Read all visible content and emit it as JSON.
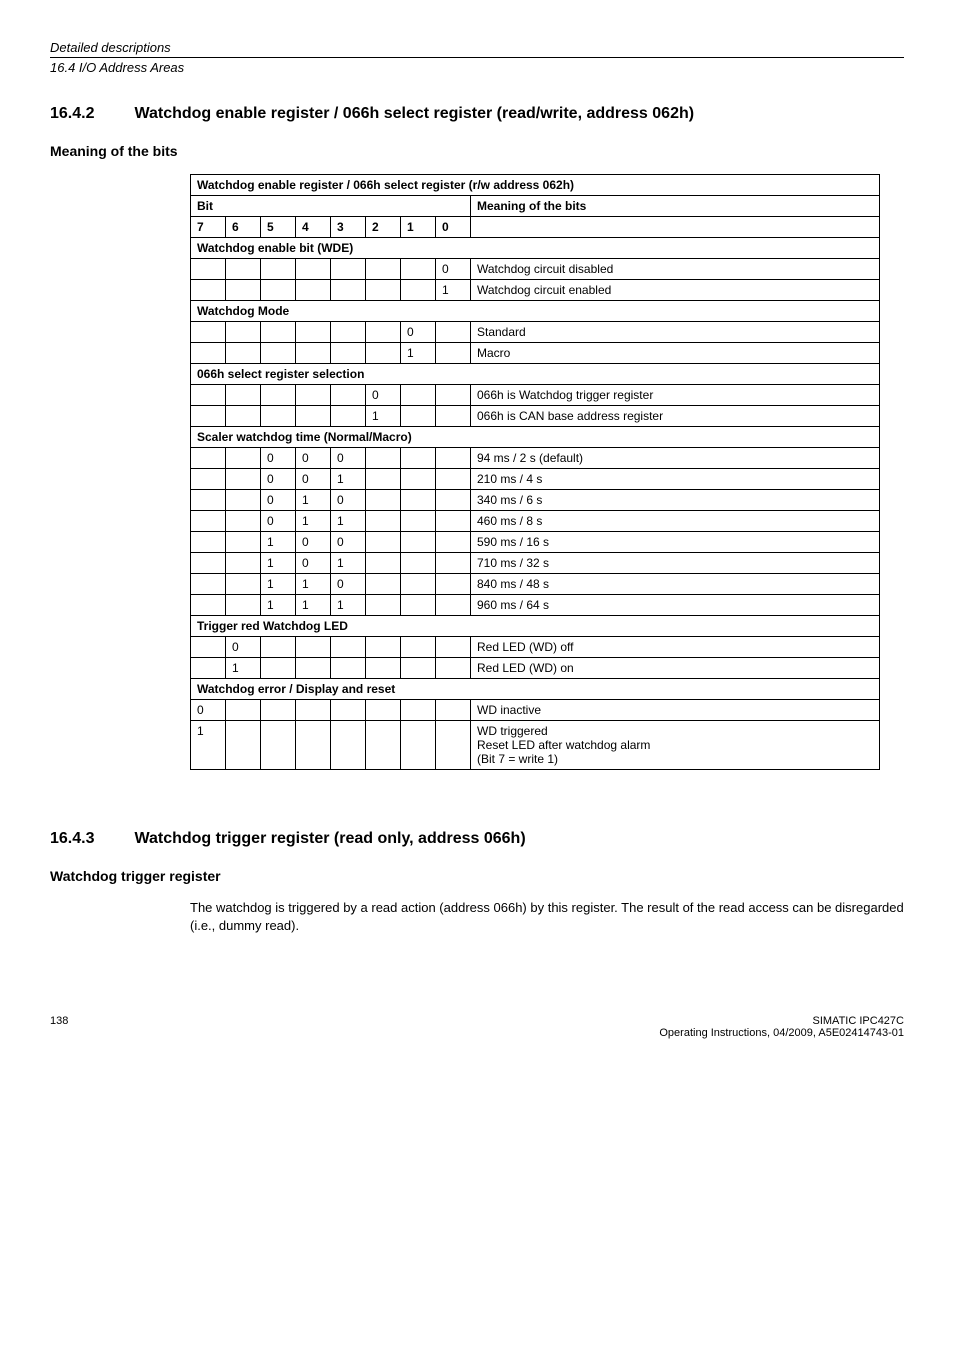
{
  "header": {
    "top": "Detailed descriptions",
    "sub": "16.4 I/O Address Areas"
  },
  "section1": {
    "num": "16.4.2",
    "title": "Watchdog enable register / 066h select register (read/write, address 062h)",
    "subhead": "Meaning of the bits",
    "table": {
      "caption": "Watchdog enable register / 066h select register (r/w address 062h)",
      "bit_label": "Bit",
      "meaning_label": "Meaning of the bits",
      "bits": [
        "7",
        "6",
        "5",
        "4",
        "3",
        "2",
        "1",
        "0"
      ],
      "groups": [
        {
          "title": "Watchdog enable bit (WDE)",
          "rows": [
            {
              "bits": [
                "",
                "",
                "",
                "",
                "",
                "",
                "",
                "0"
              ],
              "desc": "Watchdog circuit disabled"
            },
            {
              "bits": [
                "",
                "",
                "",
                "",
                "",
                "",
                "",
                "1"
              ],
              "desc": "Watchdog circuit enabled"
            }
          ]
        },
        {
          "title": "Watchdog Mode",
          "rows": [
            {
              "bits": [
                "",
                "",
                "",
                "",
                "",
                "",
                "0",
                ""
              ],
              "desc": "Standard"
            },
            {
              "bits": [
                "",
                "",
                "",
                "",
                "",
                "",
                "1",
                ""
              ],
              "desc": "Macro"
            }
          ]
        },
        {
          "title": "066h select register selection",
          "rows": [
            {
              "bits": [
                "",
                "",
                "",
                "",
                "",
                "0",
                "",
                ""
              ],
              "desc": "066h is Watchdog trigger register"
            },
            {
              "bits": [
                "",
                "",
                "",
                "",
                "",
                "1",
                "",
                ""
              ],
              "desc": "066h is CAN base address register"
            }
          ]
        },
        {
          "title": "Scaler watchdog time (Normal/Macro)",
          "rows": [
            {
              "bits": [
                "",
                "",
                "0",
                "0",
                "0",
                "",
                "",
                ""
              ],
              "desc": "94 ms / 2 s (default)"
            },
            {
              "bits": [
                "",
                "",
                "0",
                "0",
                "1",
                "",
                "",
                ""
              ],
              "desc": "210 ms / 4 s"
            },
            {
              "bits": [
                "",
                "",
                "0",
                "1",
                "0",
                "",
                "",
                ""
              ],
              "desc": "340 ms / 6 s"
            },
            {
              "bits": [
                "",
                "",
                "0",
                "1",
                "1",
                "",
                "",
                ""
              ],
              "desc": "460 ms / 8 s"
            },
            {
              "bits": [
                "",
                "",
                "1",
                "0",
                "0",
                "",
                "",
                ""
              ],
              "desc": "590 ms / 16 s"
            },
            {
              "bits": [
                "",
                "",
                "1",
                "0",
                "1",
                "",
                "",
                ""
              ],
              "desc": "710 ms / 32 s"
            },
            {
              "bits": [
                "",
                "",
                "1",
                "1",
                "0",
                "",
                "",
                ""
              ],
              "desc": "840 ms / 48 s"
            },
            {
              "bits": [
                "",
                "",
                "1",
                "1",
                "1",
                "",
                "",
                ""
              ],
              "desc": "960 ms / 64 s"
            }
          ]
        },
        {
          "title": "Trigger red Watchdog LED",
          "rows": [
            {
              "bits": [
                "",
                "0",
                "",
                "",
                "",
                "",
                "",
                ""
              ],
              "desc": "Red LED (WD) off"
            },
            {
              "bits": [
                "",
                "1",
                "",
                "",
                "",
                "",
                "",
                ""
              ],
              "desc": "Red LED (WD) on"
            }
          ]
        },
        {
          "title": "Watchdog error / Display and reset",
          "rows": [
            {
              "bits": [
                "0",
                "",
                "",
                "",
                "",
                "",
                "",
                ""
              ],
              "desc": "WD inactive"
            },
            {
              "bits": [
                "1",
                "",
                "",
                "",
                "",
                "",
                "",
                ""
              ],
              "desc": "WD triggered\nReset LED after watchdog alarm\n(Bit 7 = write 1)"
            }
          ]
        }
      ]
    }
  },
  "section2": {
    "num": "16.4.3",
    "title": "Watchdog trigger register (read only, address 066h)",
    "subhead": "Watchdog trigger register",
    "body": "The watchdog is triggered by a read action (address 066h) by this register. The result of the read access can be disregarded (i.e., dummy read)."
  },
  "footer": {
    "page": "138",
    "right1": "SIMATIC IPC427C",
    "right2": "Operating Instructions, 04/2009, A5E02414743-01"
  }
}
